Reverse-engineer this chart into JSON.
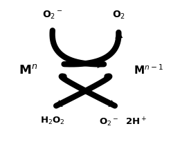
{
  "bg_color": "#ffffff",
  "text_color": "#000000",
  "top_left_label": "O$_2$$^-$",
  "top_right_label": "O$_2$",
  "mid_left_label": "M$^n$",
  "mid_right_label": "M$^{n-1}$",
  "bot_left_label": "H$_2$O$_2$",
  "bot_right_label": "O$_2$$^-$  2H$^+$",
  "fig_width": 2.47,
  "fig_height": 2.41,
  "dpi": 100,
  "arrow_lw": 6,
  "arrow_mutation_scale": 20
}
